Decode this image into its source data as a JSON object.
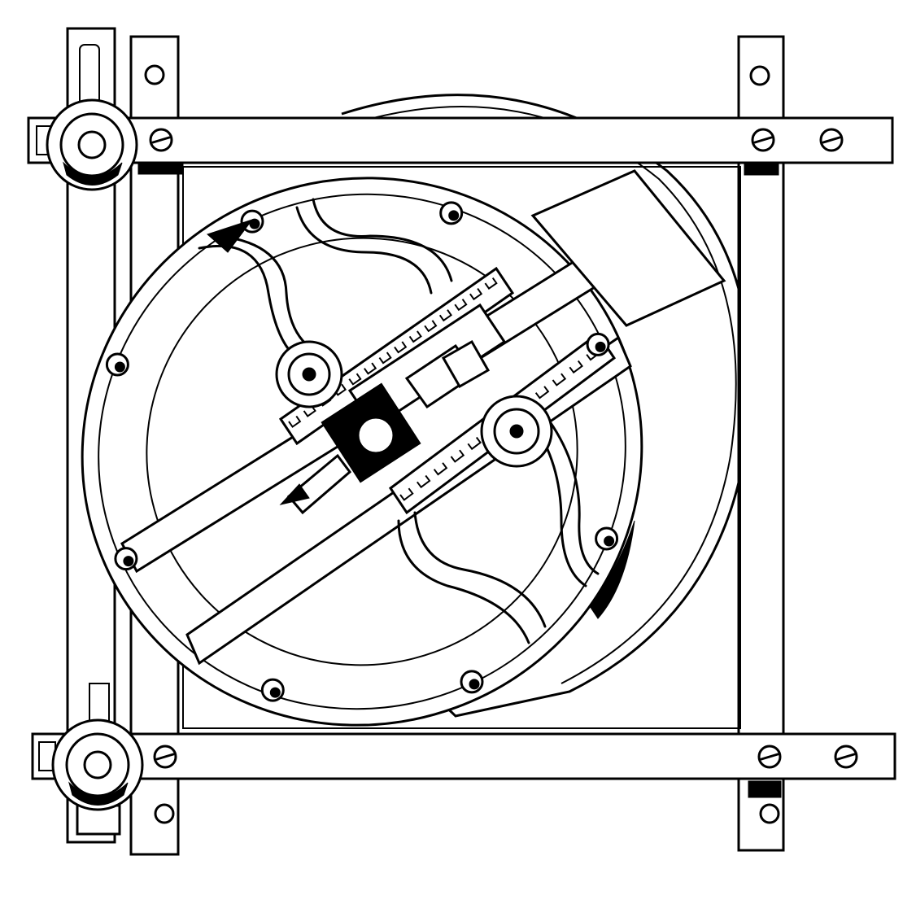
{
  "figure": {
    "kind": "line-engraving",
    "palette": {
      "ink": "#000000",
      "paper": "#ffffff"
    },
    "parts": {
      "frame_screws_per_bar": 3,
      "ring_pins": 8,
      "rack_teeth_upper": 14,
      "rack_teeth_lower": 12
    }
  }
}
